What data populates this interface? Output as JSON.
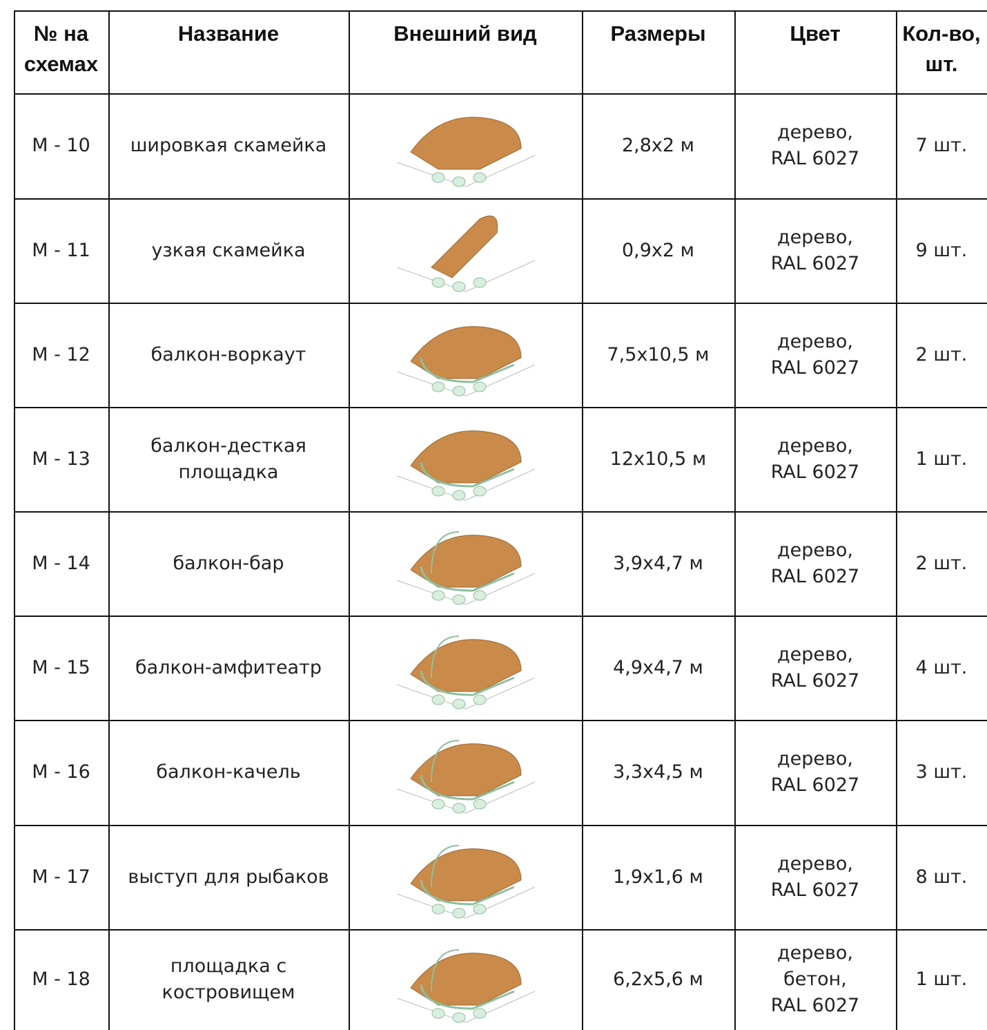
{
  "table": {
    "header": [
      [
        "№ на",
        "схемах"
      ],
      [
        "Название"
      ],
      [
        "Внешний вид"
      ],
      [
        "Размеры"
      ],
      [
        "Цвет"
      ],
      [
        "Кол-во,",
        "шт."
      ]
    ],
    "rows": [
      [
        "M - 10",
        [
          "шировкая скамейка"
        ],
        "2,8x2 м",
        [
          "дерево,",
          "RAL 6027"
        ],
        "7 шт."
      ],
      [
        "M - 11",
        [
          "узкая скамейка"
        ],
        "0,9x2 м",
        [
          "дерево,",
          "RAL 6027"
        ],
        "9 шт."
      ],
      [
        "M - 12",
        [
          "балкон-воркаут"
        ],
        "7,5x10,5 м",
        [
          "дерево,",
          "RAL 6027"
        ],
        "2 шт."
      ],
      [
        "M - 13",
        [
          "балкон-десткая",
          "площадка"
        ],
        "12x10,5 м",
        [
          "дерево,",
          "RAL 6027"
        ],
        "1 шт."
      ],
      [
        "M - 14",
        [
          "балкон-бар"
        ],
        "3,9x4,7 м",
        [
          "дерево,",
          "RAL 6027"
        ],
        "2 шт."
      ],
      [
        "M - 15",
        [
          "балкон-амфитеатр"
        ],
        "4,9x4,7 м",
        [
          "дерево,",
          "RAL 6027"
        ],
        "4 шт."
      ],
      [
        "M - 16",
        [
          "балкон-качель"
        ],
        "3,3x4,5 м",
        [
          "дерево,",
          "RAL 6027"
        ],
        "3 шт."
      ],
      [
        "M - 17",
        [
          "выступ для рыбаков"
        ],
        "1,9x1,6 м",
        [
          "дерево,",
          "RAL 6027"
        ],
        "8 шт."
      ],
      [
        "M - 18",
        [
          "площадка с",
          "костровищем"
        ],
        "6,2x5,6 м",
        [
          "дерево,",
          "бетон,",
          "RAL 6027"
        ],
        "1 шт."
      ]
    ]
  }
}
